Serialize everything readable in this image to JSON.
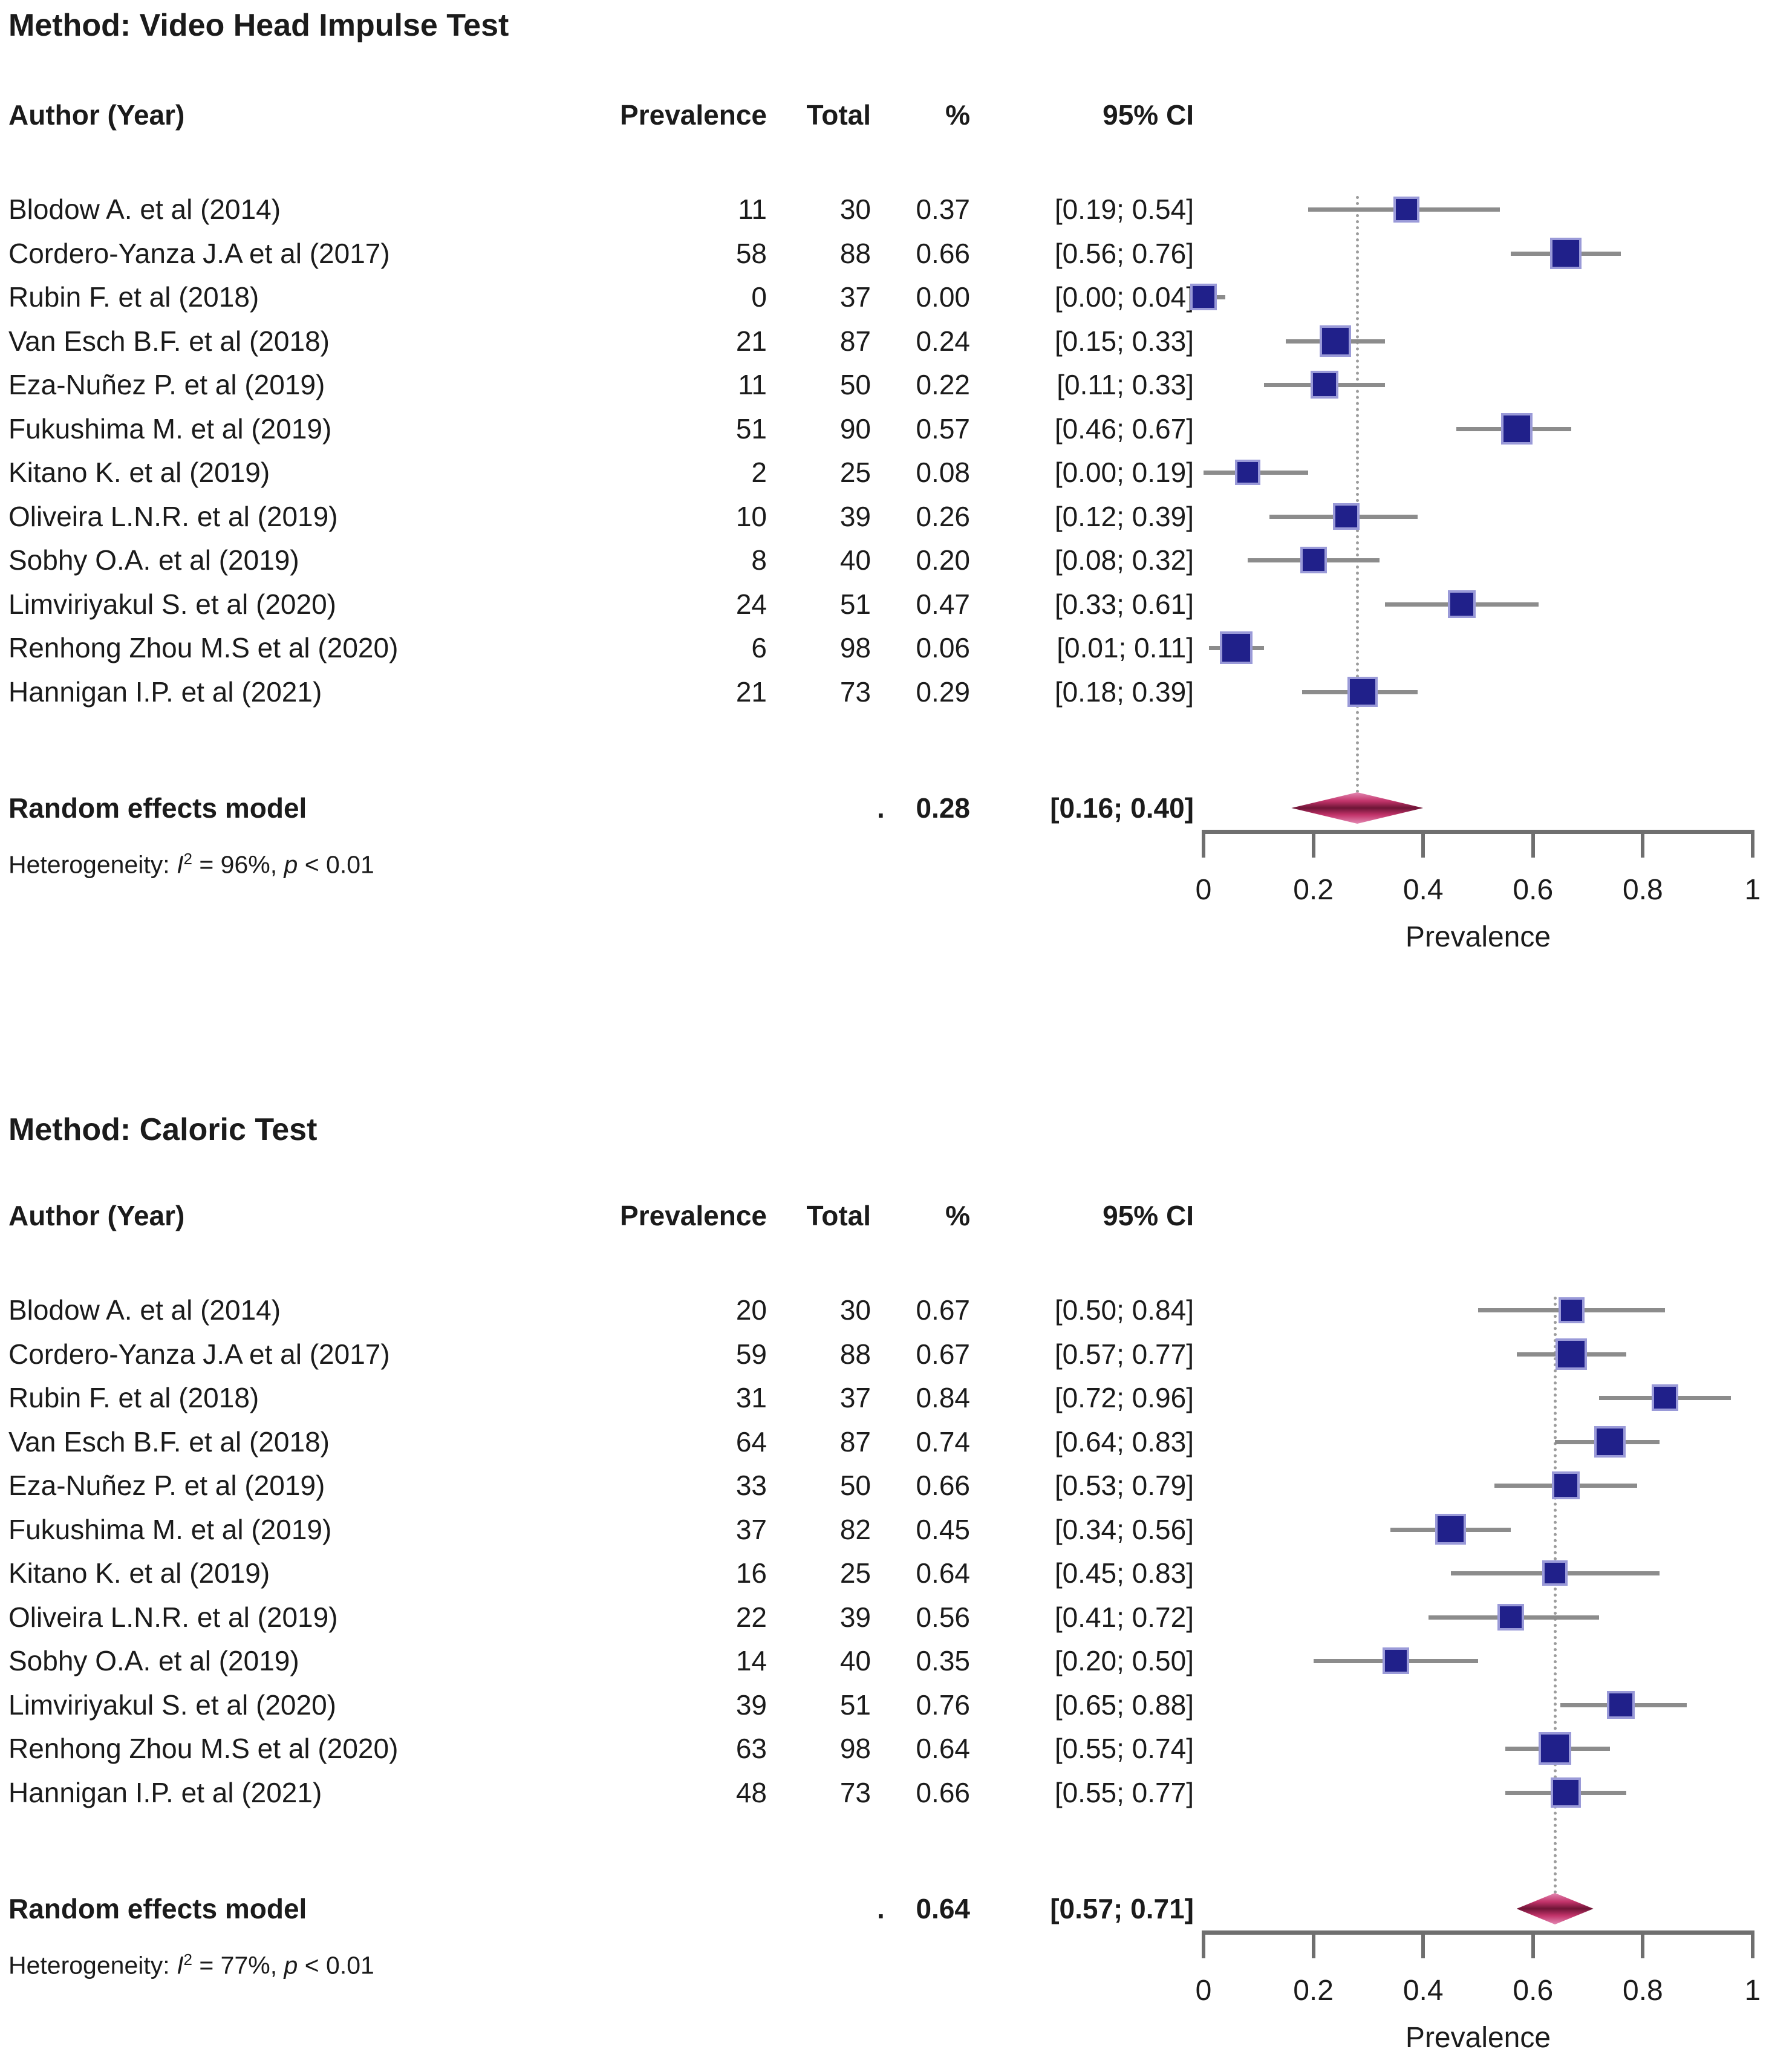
{
  "chart_data": [
    {
      "type": "forest",
      "title": "Method: Video Head Impulse Test",
      "columns": {
        "author": "Author (Year)",
        "prevalence": "Prevalence",
        "total": "Total",
        "pct": "%",
        "ci": "95% CI"
      },
      "studies": [
        {
          "author": "Blodow A. et al (2014)",
          "prevalence": 11,
          "total": 30,
          "pct": "0.37",
          "ci": "[0.19; 0.54]",
          "est": 0.37,
          "lo": 0.19,
          "hi": 0.54
        },
        {
          "author": "Cordero-Yanza J.A et al (2017)",
          "prevalence": 58,
          "total": 88,
          "pct": "0.66",
          "ci": "[0.56; 0.76]",
          "est": 0.66,
          "lo": 0.56,
          "hi": 0.76
        },
        {
          "author": "Rubin F. et al (2018)",
          "prevalence": 0,
          "total": 37,
          "pct": "0.00",
          "ci": "[0.00; 0.04]",
          "est": 0.0,
          "lo": 0.0,
          "hi": 0.04
        },
        {
          "author": "Van Esch B.F. et al (2018)",
          "prevalence": 21,
          "total": 87,
          "pct": "0.24",
          "ci": "[0.15; 0.33]",
          "est": 0.24,
          "lo": 0.15,
          "hi": 0.33
        },
        {
          "author": "Eza-Nuñez P. et al (2019)",
          "prevalence": 11,
          "total": 50,
          "pct": "0.22",
          "ci": "[0.11; 0.33]",
          "est": 0.22,
          "lo": 0.11,
          "hi": 0.33
        },
        {
          "author": "Fukushima M. et al (2019)",
          "prevalence": 51,
          "total": 90,
          "pct": "0.57",
          "ci": "[0.46; 0.67]",
          "est": 0.57,
          "lo": 0.46,
          "hi": 0.67
        },
        {
          "author": "Kitano K. et al (2019)",
          "prevalence": 2,
          "total": 25,
          "pct": "0.08",
          "ci": "[0.00; 0.19]",
          "est": 0.08,
          "lo": 0.0,
          "hi": 0.19
        },
        {
          "author": "Oliveira L.N.R. et al (2019)",
          "prevalence": 10,
          "total": 39,
          "pct": "0.26",
          "ci": "[0.12; 0.39]",
          "est": 0.26,
          "lo": 0.12,
          "hi": 0.39
        },
        {
          "author": "Sobhy O.A. et al (2019)",
          "prevalence": 8,
          "total": 40,
          "pct": "0.20",
          "ci": "[0.08; 0.32]",
          "est": 0.2,
          "lo": 0.08,
          "hi": 0.32
        },
        {
          "author": "Limviriyakul S. et al (2020)",
          "prevalence": 24,
          "total": 51,
          "pct": "0.47",
          "ci": "[0.33; 0.61]",
          "est": 0.47,
          "lo": 0.33,
          "hi": 0.61
        },
        {
          "author": "Renhong Zhou M.S et al (2020)",
          "prevalence": 6,
          "total": 98,
          "pct": "0.06",
          "ci": "[0.01; 0.11]",
          "est": 0.06,
          "lo": 0.01,
          "hi": 0.11
        },
        {
          "author": "Hannigan I.P. et al (2021)",
          "prevalence": 21,
          "total": 73,
          "pct": "0.29",
          "ci": "[0.18; 0.39]",
          "est": 0.29,
          "lo": 0.18,
          "hi": 0.39
        }
      ],
      "random_effects": {
        "label": "Random effects model",
        "dot": ".",
        "pct": "0.28",
        "ci": "[0.16; 0.40]",
        "est": 0.28,
        "lo": 0.16,
        "hi": 0.4
      },
      "heterogeneity": {
        "prefix": "Heterogeneity: ",
        "i": "I",
        "sup": "2",
        "eq": " = 96%, ",
        "p": "p",
        "tail": " < 0.01"
      },
      "axis": {
        "min": 0,
        "max": 1,
        "ticks": [
          0,
          0.2,
          0.4,
          0.6,
          0.8,
          1
        ],
        "tick_labels": [
          "0",
          "0.2",
          "0.4",
          "0.6",
          "0.8",
          "1"
        ],
        "label": "Prevalence"
      }
    },
    {
      "type": "forest",
      "title": "Method: Caloric Test",
      "columns": {
        "author": "Author (Year)",
        "prevalence": "Prevalence",
        "total": "Total",
        "pct": "%",
        "ci": "95% CI"
      },
      "studies": [
        {
          "author": "Blodow A. et al (2014)",
          "prevalence": 20,
          "total": 30,
          "pct": "0.67",
          "ci": "[0.50; 0.84]",
          "est": 0.67,
          "lo": 0.5,
          "hi": 0.84
        },
        {
          "author": "Cordero-Yanza J.A et al (2017)",
          "prevalence": 59,
          "total": 88,
          "pct": "0.67",
          "ci": "[0.57; 0.77]",
          "est": 0.67,
          "lo": 0.57,
          "hi": 0.77
        },
        {
          "author": "Rubin F. et al (2018)",
          "prevalence": 31,
          "total": 37,
          "pct": "0.84",
          "ci": "[0.72; 0.96]",
          "est": 0.84,
          "lo": 0.72,
          "hi": 0.96
        },
        {
          "author": "Van Esch B.F. et al (2018)",
          "prevalence": 64,
          "total": 87,
          "pct": "0.74",
          "ci": "[0.64; 0.83]",
          "est": 0.74,
          "lo": 0.64,
          "hi": 0.83
        },
        {
          "author": "Eza-Nuñez P. et al (2019)",
          "prevalence": 33,
          "total": 50,
          "pct": "0.66",
          "ci": "[0.53; 0.79]",
          "est": 0.66,
          "lo": 0.53,
          "hi": 0.79
        },
        {
          "author": "Fukushima M. et al (2019)",
          "prevalence": 37,
          "total": 82,
          "pct": "0.45",
          "ci": "[0.34; 0.56]",
          "est": 0.45,
          "lo": 0.34,
          "hi": 0.56
        },
        {
          "author": "Kitano K. et al (2019)",
          "prevalence": 16,
          "total": 25,
          "pct": "0.64",
          "ci": "[0.45; 0.83]",
          "est": 0.64,
          "lo": 0.45,
          "hi": 0.83
        },
        {
          "author": "Oliveira L.N.R. et al (2019)",
          "prevalence": 22,
          "total": 39,
          "pct": "0.56",
          "ci": "[0.41; 0.72]",
          "est": 0.56,
          "lo": 0.41,
          "hi": 0.72
        },
        {
          "author": "Sobhy O.A. et al (2019)",
          "prevalence": 14,
          "total": 40,
          "pct": "0.35",
          "ci": "[0.20; 0.50]",
          "est": 0.35,
          "lo": 0.2,
          "hi": 0.5
        },
        {
          "author": "Limviriyakul S. et al (2020)",
          "prevalence": 39,
          "total": 51,
          "pct": "0.76",
          "ci": "[0.65; 0.88]",
          "est": 0.76,
          "lo": 0.65,
          "hi": 0.88
        },
        {
          "author": "Renhong Zhou M.S et al (2020)",
          "prevalence": 63,
          "total": 98,
          "pct": "0.64",
          "ci": "[0.55; 0.74]",
          "est": 0.64,
          "lo": 0.55,
          "hi": 0.74
        },
        {
          "author": "Hannigan I.P. et al (2021)",
          "prevalence": 48,
          "total": 73,
          "pct": "0.66",
          "ci": "[0.55; 0.77]",
          "est": 0.66,
          "lo": 0.55,
          "hi": 0.77
        }
      ],
      "random_effects": {
        "label": "Random effects model",
        "dot": ".",
        "pct": "0.64",
        "ci": "[0.57; 0.71]",
        "est": 0.64,
        "lo": 0.57,
        "hi": 0.71
      },
      "heterogeneity": {
        "prefix": "Heterogeneity: ",
        "i": "I",
        "sup": "2",
        "eq": " = 77%, ",
        "p": "p",
        "tail": " < 0.01"
      },
      "axis": {
        "min": 0,
        "max": 1,
        "ticks": [
          0,
          0.2,
          0.4,
          0.6,
          0.8,
          1
        ],
        "tick_labels": [
          "0",
          "0.2",
          "0.4",
          "0.6",
          "0.8",
          "1"
        ],
        "label": "Prevalence"
      }
    }
  ],
  "colors": {
    "square": "#20208a",
    "square_border": "#9a9ad8",
    "whisker": "#8c8c8c",
    "diamond": "#c2336a",
    "diamond_dark": "#6e1536",
    "axis": "#6f6f6f",
    "dotted_line": "#9c9c9c",
    "text": "#1b1b1b",
    "background": "#ffffff"
  }
}
